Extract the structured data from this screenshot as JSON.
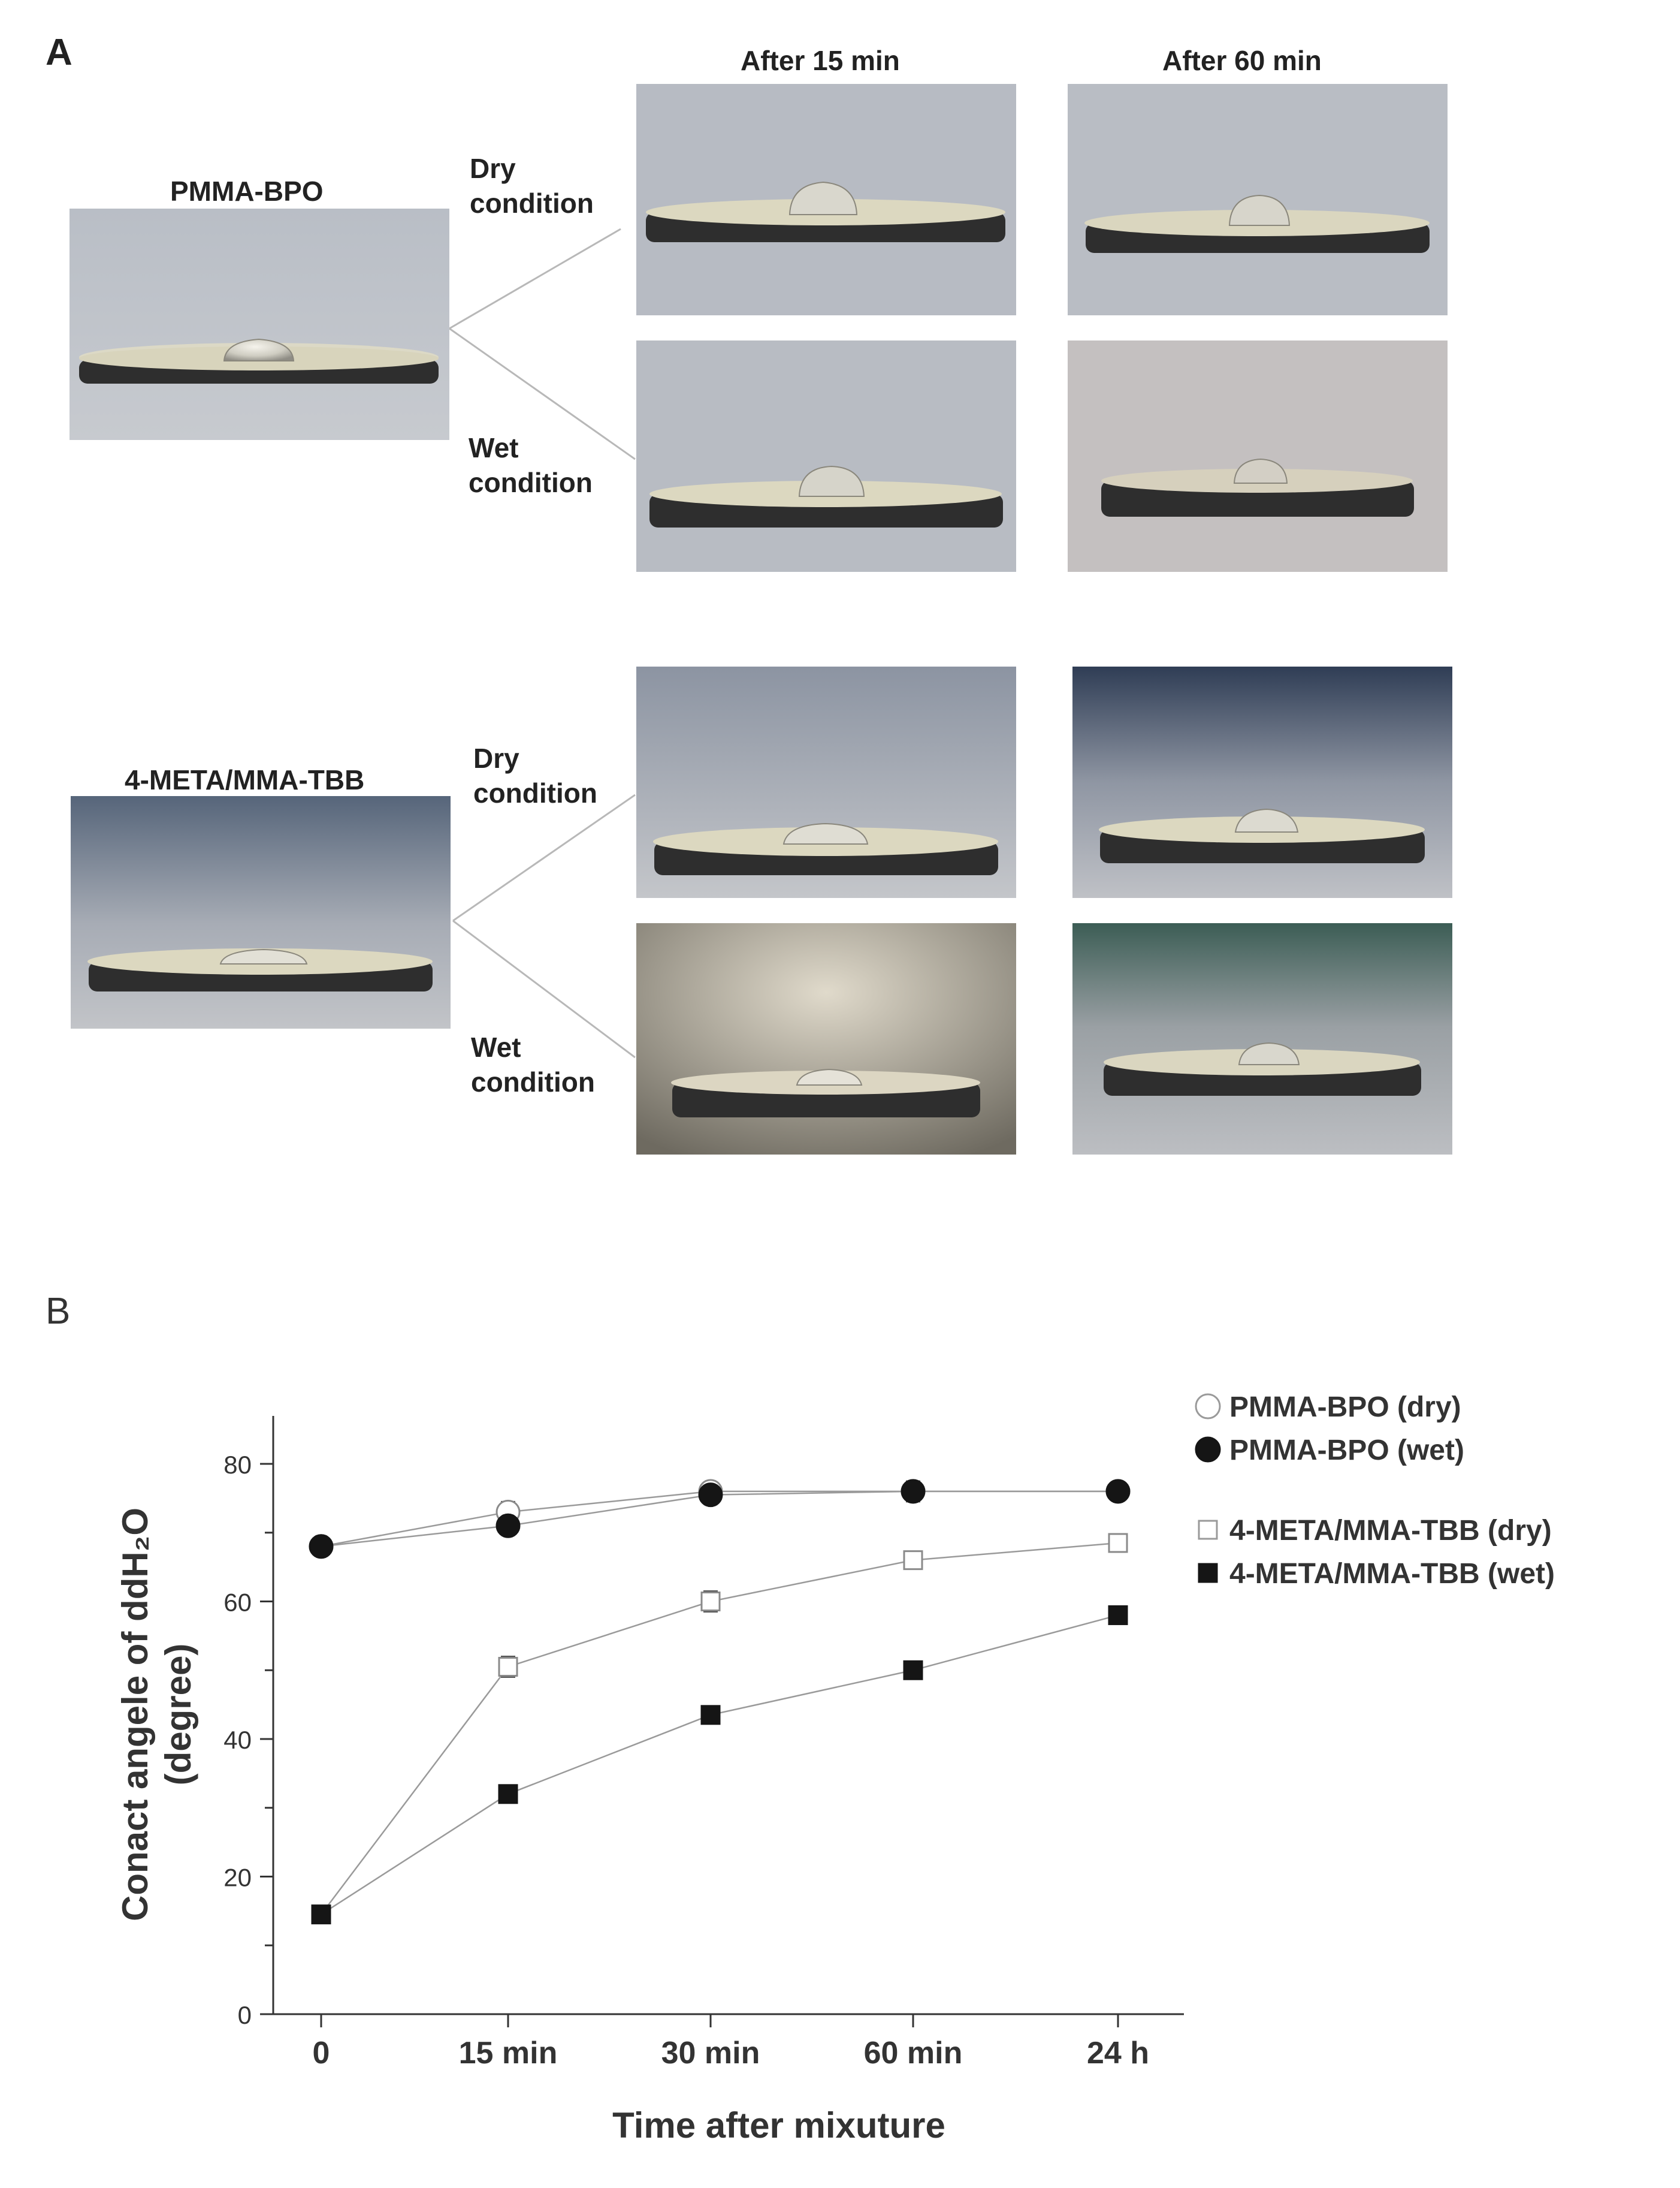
{
  "panel_a": {
    "letter": "A",
    "col_headers": [
      "After 15 min",
      "After 60 min"
    ],
    "groups": [
      {
        "material": "PMMA-BPO",
        "dry_label": "Dry\ncondition",
        "wet_label": "Wet\ncondition"
      },
      {
        "material": "4-META/MMA-TBB",
        "dry_label": "Dry\ncondition",
        "wet_label": "Wet\ncondition"
      }
    ]
  },
  "panel_b": {
    "letter": "B"
  },
  "chart_data": {
    "type": "line",
    "xlabel": "Time after mixuture",
    "ylabel_line1": "Conact angele of ddH₂O",
    "ylabel_line2": "(degree)",
    "categories": [
      "0",
      "15 min",
      "30 min",
      "60 min",
      "24 h"
    ],
    "yticks": [
      0,
      20,
      40,
      60,
      80
    ],
    "ylim": [
      0,
      80
    ],
    "grid": false,
    "legend_position": "right",
    "series": [
      {
        "name": "PMMA-BPO (dry)",
        "marker": "circle",
        "fill": "open",
        "values": [
          68,
          73,
          76,
          76,
          76
        ],
        "errors": [
          1.2,
          1.5,
          1.2,
          1.5,
          1.2
        ]
      },
      {
        "name": "PMMA-BPO (wet)",
        "marker": "circle",
        "fill": "filled",
        "values": [
          68,
          71,
          75.5,
          76,
          76
        ],
        "errors": [
          1,
          1,
          1,
          1,
          1
        ]
      },
      {
        "name": "4-META/MMA-TBB (dry)",
        "marker": "square",
        "fill": "open",
        "values": [
          14.5,
          50.5,
          60,
          66,
          68.5
        ],
        "errors": [
          0.8,
          1.5,
          1.5,
          1.3,
          1.3
        ]
      },
      {
        "name": "4-META/MMA-TBB (wet)",
        "marker": "square",
        "fill": "filled",
        "values": [
          14.5,
          32,
          43.5,
          50,
          58
        ],
        "errors": [
          0.8,
          1.2,
          1.2,
          0.8,
          1.3
        ]
      }
    ]
  }
}
